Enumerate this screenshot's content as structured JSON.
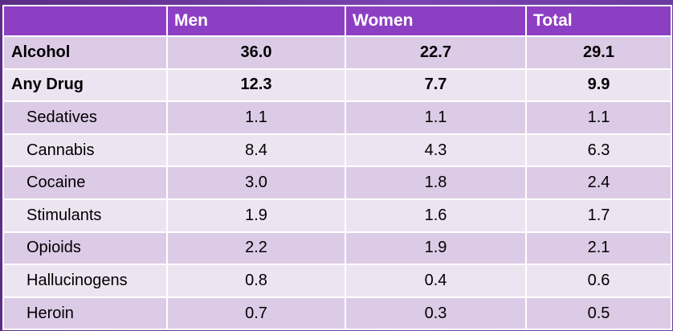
{
  "table": {
    "headers": [
      "",
      "Men",
      "Women",
      "Total"
    ],
    "rows": [
      {
        "label": "Alcohol",
        "men": "36.0",
        "women": "22.7",
        "total": "29.1"
      },
      {
        "label": "Any Drug",
        "men": "12.3",
        "women": "7.7",
        "total": "9.9"
      },
      {
        "label": "Sedatives",
        "men": "1.1",
        "women": "1.1",
        "total": "1.1"
      },
      {
        "label": "Cannabis",
        "men": "8.4",
        "women": "4.3",
        "total": "6.3"
      },
      {
        "label": "Cocaine",
        "men": "3.0",
        "women": "1.8",
        "total": "2.4"
      },
      {
        "label": "Stimulants",
        "men": "1.9",
        "women": "1.6",
        "total": "1.7"
      },
      {
        "label": "Opioids",
        "men": "2.2",
        "women": "1.9",
        "total": "2.1"
      },
      {
        "label": "Hallucinogens",
        "men": "0.8",
        "women": "0.4",
        "total": "0.6"
      },
      {
        "label": "Heroin",
        "men": "0.7",
        "women": "0.3",
        "total": "0.5"
      }
    ]
  },
  "colors": {
    "header_bg": "#8d3fc4",
    "row_dark": "#dccbe6",
    "row_light": "#ede4f2",
    "background": "#6a3d9a"
  }
}
